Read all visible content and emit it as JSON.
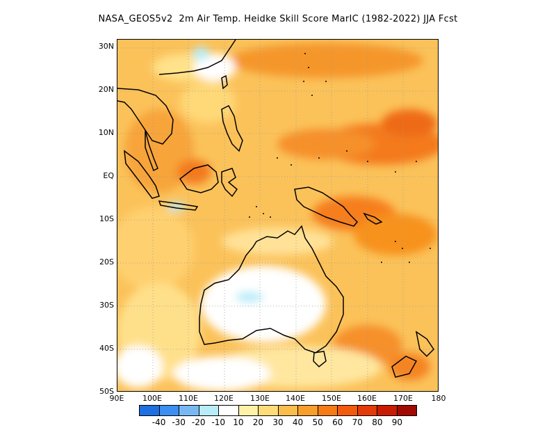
{
  "title": "NASA_GEOS5v2  2m Air Temp. Heidke Skill Score MarIC (1982-2022) JJA Fcst",
  "map": {
    "lon_range": [
      90,
      180
    ],
    "lat_range": [
      -50,
      32
    ],
    "y_axis_labels": [
      {
        "lat": 30,
        "label": "30N"
      },
      {
        "lat": 20,
        "label": "20N"
      },
      {
        "lat": 10,
        "label": "10N"
      },
      {
        "lat": 0,
        "label": "EQ"
      },
      {
        "lat": -10,
        "label": "10S"
      },
      {
        "lat": -20,
        "label": "20S"
      },
      {
        "lat": -30,
        "label": "30S"
      },
      {
        "lat": -40,
        "label": "40S"
      },
      {
        "lat": -50,
        "label": "50S"
      }
    ],
    "x_axis_labels": [
      {
        "lon": 90,
        "label": "90E"
      },
      {
        "lon": 100,
        "label": "100E"
      },
      {
        "lon": 110,
        "label": "110E"
      },
      {
        "lon": 120,
        "label": "120E"
      },
      {
        "lon": 130,
        "label": "130E"
      },
      {
        "lon": 140,
        "label": "140E"
      },
      {
        "lon": 150,
        "label": "150E"
      },
      {
        "lon": 160,
        "label": "160E"
      },
      {
        "lon": 170,
        "label": "170E"
      },
      {
        "lon": 180,
        "label": "180"
      }
    ],
    "gridlines": "dotted"
  },
  "colorbar": {
    "colors": [
      "#1e6fe0",
      "#3c8ef0",
      "#78b8f2",
      "#b8ecf8",
      "#ffffff",
      "#fff2a8",
      "#ffdc78",
      "#fbbd4c",
      "#f99e2a",
      "#f67a16",
      "#f25a0c",
      "#e23a08",
      "#c81c04",
      "#a00a02"
    ],
    "labels": [
      "-40",
      "-30",
      "-20",
      "-10",
      "10",
      "20",
      "30",
      "40",
      "50",
      "60",
      "70",
      "80",
      "90"
    ]
  }
}
